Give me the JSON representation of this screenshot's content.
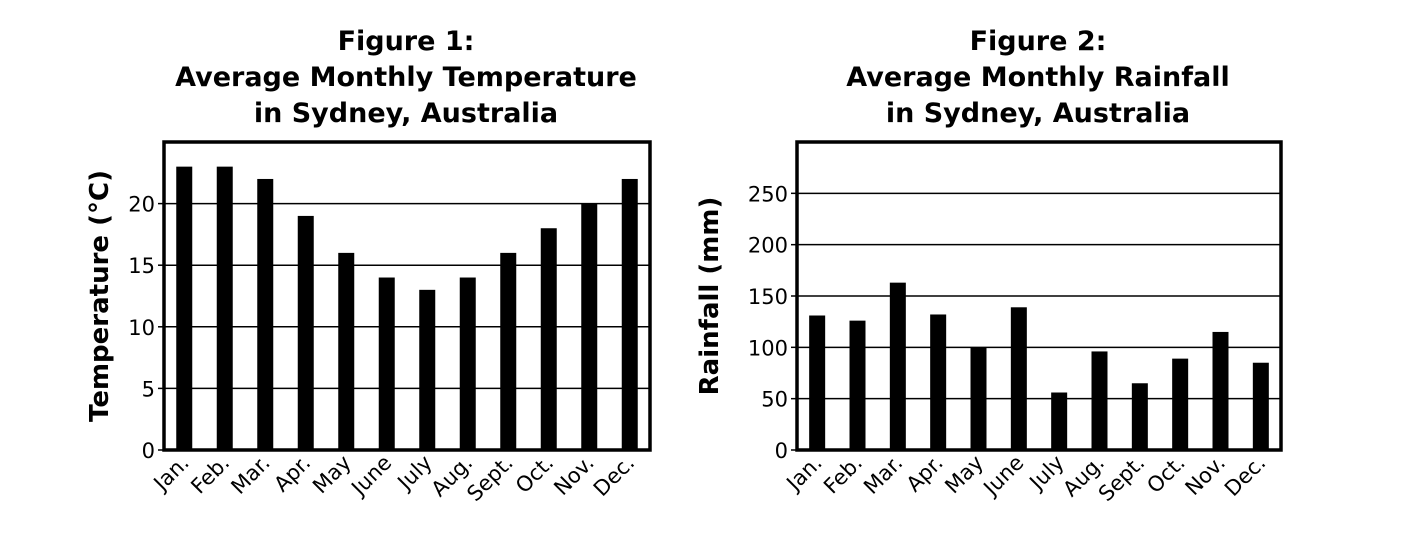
{
  "chart_data": [
    {
      "type": "bar",
      "title": [
        "Figure 1:",
        "Average Monthly Temperature",
        "in Sydney, Australia"
      ],
      "xlabel": "",
      "ylabel": "Temperature (°C)",
      "categories": [
        "Jan.",
        "Feb.",
        "Mar.",
        "Apr.",
        "May",
        "June",
        "July",
        "Aug.",
        "Sept.",
        "Oct.",
        "Nov.",
        "Dec."
      ],
      "values": [
        23,
        23,
        22,
        19,
        16,
        14,
        13,
        14,
        16,
        18,
        20,
        22
      ],
      "ylim": [
        0,
        25
      ],
      "yticks": [
        0,
        5,
        10,
        15,
        20
      ],
      "grid": true,
      "color": "#000000"
    },
    {
      "type": "bar",
      "title": [
        "Figure 2:",
        "Average Monthly Rainfall",
        "in Sydney, Australia"
      ],
      "xlabel": "",
      "ylabel": "Rainfall (mm)",
      "categories": [
        "Jan.",
        "Feb.",
        "Mar.",
        "Apr.",
        "May",
        "June",
        "July",
        "Aug.",
        "Sept.",
        "Oct.",
        "Nov.",
        "Dec."
      ],
      "values": [
        131,
        126,
        163,
        132,
        100,
        139,
        56,
        96,
        65,
        89,
        115,
        85
      ],
      "ylim": [
        0,
        300
      ],
      "yticks": [
        0,
        50,
        100,
        150,
        200,
        250
      ],
      "grid": true,
      "color": "#000000"
    }
  ]
}
